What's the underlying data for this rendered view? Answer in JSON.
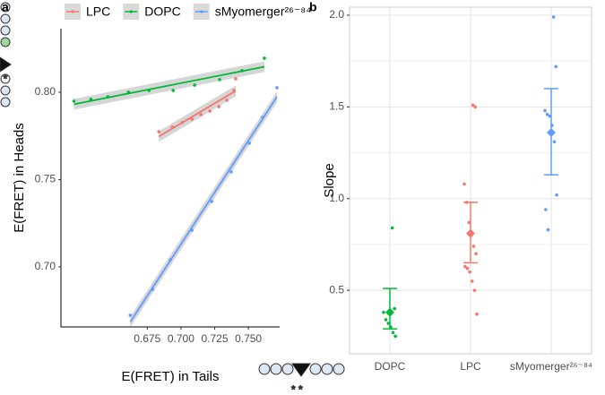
{
  "chart_data": [
    {
      "type": "scatter",
      "panel_label": "a",
      "x_label": "E(FRET) in Tails",
      "y_label": "E(FRET) in Heads",
      "xlim": [
        0.611,
        0.7732
      ],
      "ylim": [
        0.6656,
        0.8364
      ],
      "xticks": [
        0.675,
        {
          "value": 0.7,
          "label": "0.700"
        },
        0.725,
        {
          "value": 0.75,
          "label": "0.750"
        }
      ],
      "yticks": [
        {
          "value": 0.7,
          "label": "0.70"
        },
        0.75,
        {
          "value": 0.8,
          "label": "0.80"
        }
      ],
      "grid": false,
      "legend": "top",
      "fit_line": true,
      "series": [
        {
          "name": "LPC",
          "color": "#f8766d",
          "x": [
            0.6836,
            0.6936,
            0.7009,
            0.7082,
            0.7148,
            0.7214,
            0.7281,
            0.734,
            0.7393,
            0.7406
          ],
          "values": [
            0.7774,
            0.78,
            0.7826,
            0.7846,
            0.7872,
            0.7892,
            0.7918,
            0.7954,
            0.801,
            0.8077
          ]
        },
        {
          "name": "DOPC",
          "color": "#00ba38",
          "x": [
            0.6206,
            0.6332,
            0.6458,
            0.6611,
            0.6763,
            0.6942,
            0.7101,
            0.7287,
            0.7453,
            0.7619
          ],
          "values": [
            0.7949,
            0.7959,
            0.7974,
            0.8,
            0.801,
            0.801,
            0.8041,
            0.8072,
            0.8123,
            0.8195
          ]
        },
        {
          "name": "sMyomerger²⁶⁻⁸⁴",
          "color": "#619cff",
          "x": [
            0.6624,
            0.679,
            0.6922,
            0.7082,
            0.7228,
            0.7373,
            0.7507,
            0.7606,
            0.7712
          ],
          "values": [
            0.6723,
            0.6872,
            0.7041,
            0.721,
            0.7374,
            0.7544,
            0.7708,
            0.7856,
            0.8026
          ]
        }
      ]
    },
    {
      "type": "strip",
      "panel_label": "b",
      "y_label": "Slope",
      "categories": [
        "DOPC",
        "LPC",
        "sMyomerger²⁶⁻⁸⁴"
      ],
      "ylim": [
        0.154,
        2.044
      ],
      "yticks": [
        0.5,
        {
          "value": 1,
          "label": "1.0"
        },
        1.5,
        {
          "value": 2,
          "label": "2.0"
        }
      ],
      "grid": true,
      "series": [
        {
          "color": "#00ba38",
          "values": [
            0.84,
            0.4,
            0.38,
            0.34,
            0.32,
            0.3,
            0.27,
            0.25
          ],
          "mean": 0.38,
          "lower": 0.29,
          "upper": 0.51
        },
        {
          "color": "#f8766d",
          "values": [
            1.51,
            1.5,
            1.08,
            0.98,
            0.87,
            0.8,
            0.74,
            0.7,
            0.63,
            0.62,
            0.6,
            0.55,
            0.5,
            0.37
          ],
          "mean": 0.81,
          "lower": 0.65,
          "upper": 0.98
        },
        {
          "color": "#619cff",
          "values": [
            1.99,
            1.72,
            1.48,
            1.46,
            1.45,
            1.4,
            1.31,
            1.02,
            0.94,
            0.83
          ],
          "mean": 1.36,
          "lower": 1.13,
          "upper": 1.6
        }
      ]
    }
  ]
}
